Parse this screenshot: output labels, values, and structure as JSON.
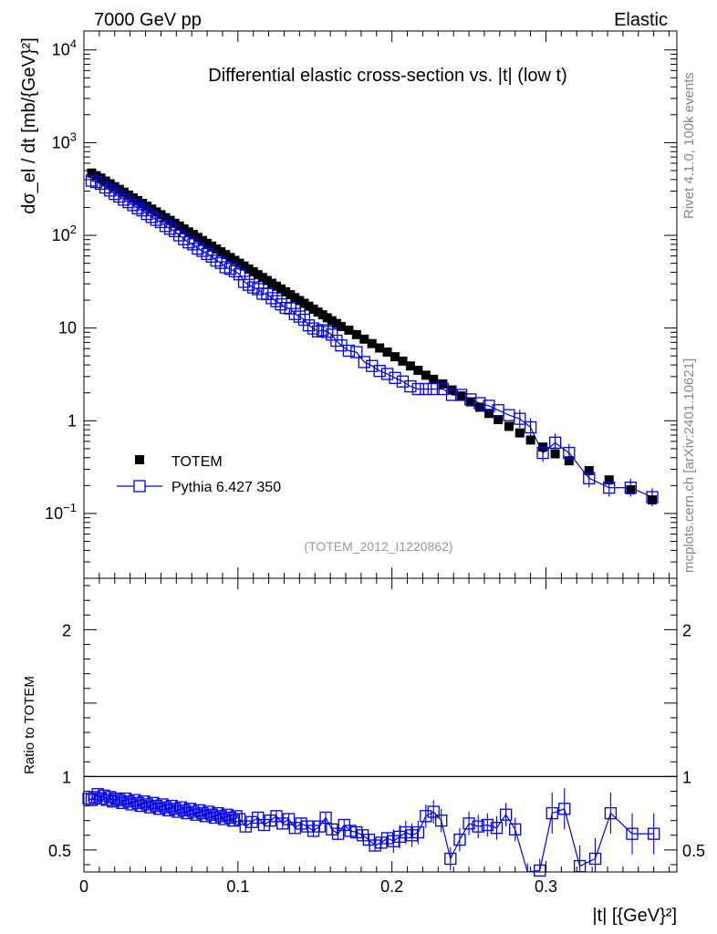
{
  "header": {
    "left": "7000 GeV pp",
    "right": "Elastic"
  },
  "side_text": {
    "rivet": "Rivet 4.1.0,  100k events",
    "mcplots": "mcplots.cern.ch [arXiv:2401.10621]"
  },
  "chart_data": [
    {
      "type": "scatter",
      "title": "Differential elastic cross-section vs. |t| (low t)",
      "analysis_id": "(TOTEM_2012_I1220862)",
      "xlabel": "|t| [{GeV}²]",
      "ylabel": "dσ_el / dt [mb/{GeV}²]",
      "yscale": "log",
      "xlim": [
        0,
        0.385
      ],
      "ylim": [
        0.02,
        16000
      ],
      "x_ticks": [
        "0",
        "0.1",
        "0.2",
        "0.3"
      ],
      "y_ticks": [
        "10^-1",
        "1",
        "10",
        "10^2",
        "10^3",
        "10^4"
      ],
      "legend": {
        "position": "bottom-left",
        "entries": [
          "TOTEM",
          "Pythia 6.427 350"
        ]
      },
      "series": [
        {
          "name": "TOTEM",
          "marker": "filled-square",
          "color": "#000000",
          "x": [
            0.005,
            0.008,
            0.011,
            0.014,
            0.017,
            0.02,
            0.023,
            0.026,
            0.029,
            0.032,
            0.035,
            0.038,
            0.041,
            0.044,
            0.047,
            0.05,
            0.053,
            0.056,
            0.059,
            0.062,
            0.065,
            0.068,
            0.071,
            0.074,
            0.077,
            0.08,
            0.083,
            0.086,
            0.089,
            0.092,
            0.095,
            0.098,
            0.101,
            0.104,
            0.107,
            0.11,
            0.113,
            0.116,
            0.119,
            0.122,
            0.125,
            0.128,
            0.131,
            0.134,
            0.137,
            0.14,
            0.143,
            0.146,
            0.149,
            0.152,
            0.155,
            0.158,
            0.161,
            0.164,
            0.167,
            0.172,
            0.177,
            0.182,
            0.187,
            0.192,
            0.197,
            0.202,
            0.207,
            0.212,
            0.217,
            0.222,
            0.227,
            0.233,
            0.239,
            0.245,
            0.251,
            0.257,
            0.263,
            0.269,
            0.276,
            0.283,
            0.29,
            0.298,
            0.306,
            0.315,
            0.328,
            0.341,
            0.355,
            0.369
          ],
          "y": [
            470,
            440,
            415,
            385,
            360,
            335,
            313,
            292,
            272,
            254,
            237,
            221,
            206,
            192,
            179,
            167,
            155,
            145,
            135,
            126,
            117,
            109,
            102,
            95,
            88,
            82,
            76.5,
            71.3,
            66.4,
            61.9,
            57.6,
            53.7,
            50,
            46.6,
            43.4,
            40.4,
            37.6,
            35.1,
            32.6,
            30.4,
            28.3,
            26.4,
            24.6,
            22.9,
            21.3,
            19.8,
            18.5,
            17.2,
            16,
            14.9,
            13.9,
            12.9,
            12,
            11.2,
            10.4,
            9.5,
            8.5,
            7.6,
            6.8,
            6.1,
            5.5,
            4.9,
            4.4,
            3.9,
            3.5,
            3.1,
            2.8,
            2.5,
            2.15,
            1.85,
            1.6,
            1.4,
            1.2,
            1.03,
            0.87,
            0.74,
            0.62,
            0.52,
            0.44,
            0.37,
            0.29,
            0.23,
            0.18,
            0.14
          ]
        },
        {
          "name": "Pythia 6.427 350",
          "marker": "open-square",
          "color": "#0000ee",
          "x": [
            0.005,
            0.008,
            0.011,
            0.014,
            0.017,
            0.02,
            0.023,
            0.026,
            0.029,
            0.032,
            0.035,
            0.038,
            0.041,
            0.044,
            0.047,
            0.05,
            0.053,
            0.056,
            0.059,
            0.062,
            0.065,
            0.068,
            0.071,
            0.074,
            0.077,
            0.08,
            0.083,
            0.086,
            0.089,
            0.092,
            0.095,
            0.098,
            0.101,
            0.104,
            0.107,
            0.11,
            0.113,
            0.116,
            0.119,
            0.122,
            0.125,
            0.128,
            0.131,
            0.134,
            0.137,
            0.14,
            0.143,
            0.146,
            0.149,
            0.152,
            0.155,
            0.158,
            0.161,
            0.164,
            0.167,
            0.172,
            0.177,
            0.182,
            0.187,
            0.192,
            0.197,
            0.202,
            0.207,
            0.212,
            0.217,
            0.222,
            0.227,
            0.233,
            0.239,
            0.245,
            0.251,
            0.257,
            0.263,
            0.269,
            0.276,
            0.283,
            0.29,
            0.298,
            0.306,
            0.315,
            0.328,
            0.341,
            0.355,
            0.369
          ],
          "y": [
            390,
            376,
            360,
            328,
            305,
            280,
            262,
            243,
            228,
            212,
            196,
            186,
            170,
            158,
            147,
            139,
            126,
            118,
            111,
            100,
            91,
            84,
            80,
            72,
            68,
            63,
            59,
            53.5,
            50.5,
            45.2,
            43.5,
            40.9,
            38,
            31.5,
            29.3,
            27.4,
            26.3,
            23.5,
            23.3,
            21,
            19.5,
            18,
            16.5,
            16.3,
            14.2,
            13.3,
            12.3,
            10.7,
            9.9,
            9.2,
            9.5,
            9.1,
            8.5,
            7.3,
            6.5,
            5.7,
            5.5,
            4.3,
            3.9,
            3.45,
            3.2,
            2.9,
            2.65,
            2.35,
            2.2,
            2.2,
            2.2,
            2.2,
            1.9,
            1.9,
            1.7,
            1.55,
            1.45,
            1.3,
            1.15,
            1.05,
            0.85,
            0.45,
            0.58,
            0.45,
            0.24,
            0.19,
            0.19,
            0.15
          ]
        }
      ]
    },
    {
      "type": "line",
      "ylabel": "Ratio to TOTEM",
      "xlim": [
        0,
        0.385
      ],
      "ylim": [
        0.35,
        2.35
      ],
      "y_ticks": [
        "0.5",
        "1",
        "2"
      ],
      "reference_line": 1,
      "series": [
        {
          "name": "Pythia 6.427 350 / TOTEM",
          "marker": "open-square",
          "color": "#0000ee",
          "x": [
            0.003,
            0.005,
            0.007,
            0.009,
            0.011,
            0.013,
            0.015,
            0.017,
            0.019,
            0.021,
            0.023,
            0.025,
            0.027,
            0.029,
            0.031,
            0.033,
            0.035,
            0.037,
            0.039,
            0.041,
            0.043,
            0.045,
            0.047,
            0.049,
            0.051,
            0.053,
            0.055,
            0.057,
            0.059,
            0.061,
            0.063,
            0.065,
            0.067,
            0.069,
            0.071,
            0.073,
            0.075,
            0.077,
            0.079,
            0.081,
            0.083,
            0.085,
            0.087,
            0.089,
            0.091,
            0.093,
            0.095,
            0.097,
            0.099,
            0.101,
            0.105,
            0.109,
            0.113,
            0.117,
            0.121,
            0.125,
            0.129,
            0.133,
            0.137,
            0.141,
            0.145,
            0.149,
            0.153,
            0.157,
            0.161,
            0.165,
            0.169,
            0.173,
            0.177,
            0.181,
            0.185,
            0.189,
            0.193,
            0.197,
            0.201,
            0.205,
            0.209,
            0.213,
            0.217,
            0.222,
            0.227,
            0.232,
            0.238,
            0.244,
            0.25,
            0.256,
            0.262,
            0.268,
            0.274,
            0.28,
            0.288,
            0.296,
            0.304,
            0.312,
            0.322,
            0.332,
            0.342,
            0.356,
            0.37
          ],
          "y": [
            0.85,
            0.84,
            0.86,
            0.88,
            0.85,
            0.87,
            0.84,
            0.86,
            0.83,
            0.85,
            0.84,
            0.82,
            0.85,
            0.83,
            0.81,
            0.84,
            0.82,
            0.8,
            0.83,
            0.81,
            0.79,
            0.82,
            0.8,
            0.78,
            0.81,
            0.79,
            0.77,
            0.8,
            0.78,
            0.76,
            0.79,
            0.77,
            0.75,
            0.78,
            0.76,
            0.74,
            0.77,
            0.75,
            0.73,
            0.76,
            0.74,
            0.72,
            0.75,
            0.73,
            0.71,
            0.74,
            0.72,
            0.7,
            0.73,
            0.71,
            0.66,
            0.69,
            0.72,
            0.67,
            0.7,
            0.73,
            0.68,
            0.71,
            0.65,
            0.68,
            0.66,
            0.63,
            0.66,
            0.72,
            0.64,
            0.61,
            0.67,
            0.63,
            0.62,
            0.6,
            0.57,
            0.53,
            0.55,
            0.58,
            0.56,
            0.59,
            0.62,
            0.6,
            0.62,
            0.73,
            0.76,
            0.7,
            0.44,
            0.57,
            0.68,
            0.66,
            0.67,
            0.65,
            0.74,
            0.64,
            0.33,
            0.36,
            0.75,
            0.78,
            0.39,
            0.44,
            0.75,
            0.61,
            0.61
          ]
        }
      ]
    }
  ]
}
